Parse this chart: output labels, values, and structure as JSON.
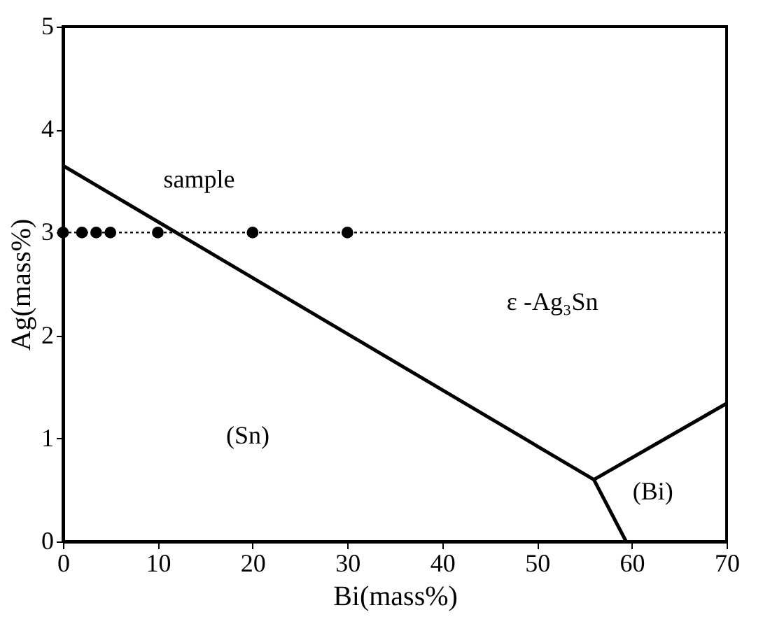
{
  "chart_data": {
    "type": "line",
    "xlabel": "Bi(mass%)",
    "ylabel": "Ag(mass%)",
    "xlim": [
      0,
      70
    ],
    "ylim": [
      0,
      5
    ],
    "xticks": [
      0,
      10,
      20,
      30,
      40,
      50,
      60,
      70
    ],
    "yticks": [
      0,
      1,
      2,
      3,
      4,
      5
    ],
    "grid": false,
    "series": [
      {
        "color": "#000000",
        "x": [
          0,
          56
        ],
        "values": [
          3.65,
          0.6
        ]
      },
      {
        "color": "#000000",
        "x": [
          56,
          59.4
        ],
        "values": [
          0.6,
          0
        ]
      },
      {
        "color": "#000000",
        "x": [
          56,
          70
        ],
        "values": [
          0.6,
          1.34
        ]
      },
      {
        "type": "scatter",
        "color": "#000000",
        "marker": "circle",
        "x": [
          0,
          2,
          3.5,
          5,
          10,
          20,
          30
        ],
        "values": [
          3,
          3,
          3,
          3,
          3,
          3,
          3
        ]
      }
    ],
    "ref_lines": [
      {
        "axis": "y",
        "value": 3,
        "line_style": "dotted",
        "color": "#000000"
      }
    ],
    "annotations": [
      "sample",
      "(Sn)",
      "ε -Ag₃Sn",
      "(Bi)"
    ]
  }
}
